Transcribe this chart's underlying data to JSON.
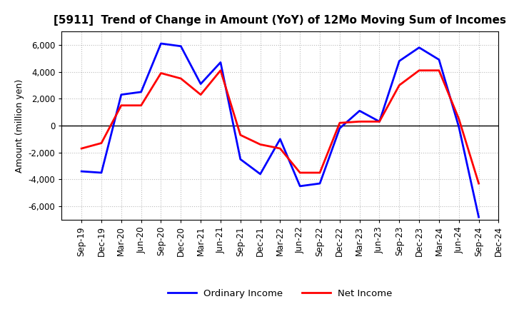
{
  "title": "[5911]  Trend of Change in Amount (YoY) of 12Mo Moving Sum of Incomes",
  "ylabel": "Amount (million yen)",
  "x_labels": [
    "Sep-19",
    "Dec-19",
    "Mar-20",
    "Jun-20",
    "Sep-20",
    "Dec-20",
    "Mar-21",
    "Jun-21",
    "Sep-21",
    "Dec-21",
    "Mar-22",
    "Jun-22",
    "Sep-22",
    "Dec-22",
    "Mar-23",
    "Jun-23",
    "Sep-23",
    "Dec-23",
    "Mar-24",
    "Jun-24",
    "Sep-24",
    "Dec-24"
  ],
  "ordinary_income": [
    -3400,
    -3500,
    2300,
    2500,
    6100,
    5900,
    3100,
    4700,
    -2500,
    -3600,
    -1000,
    -4500,
    -4300,
    -200,
    1100,
    300,
    4800,
    5800,
    4900,
    -100,
    -6800,
    null
  ],
  "net_income": [
    -1700,
    -1300,
    1500,
    1500,
    3900,
    3500,
    2300,
    4100,
    -700,
    -1400,
    -1700,
    -3500,
    -3500,
    200,
    300,
    300,
    3000,
    4100,
    4100,
    500,
    -4300,
    null
  ],
  "ordinary_income_color": "#0000ff",
  "net_income_color": "#ff0000",
  "background_color": "#ffffff",
  "grid_color": "#bbbbbb",
  "ylim": [
    -7000,
    7000
  ],
  "yticks": [
    -6000,
    -4000,
    -2000,
    0,
    2000,
    4000,
    6000
  ],
  "legend_labels": [
    "Ordinary Income",
    "Net Income"
  ],
  "title_fontsize": 11,
  "axis_fontsize": 9,
  "tick_fontsize": 8.5
}
